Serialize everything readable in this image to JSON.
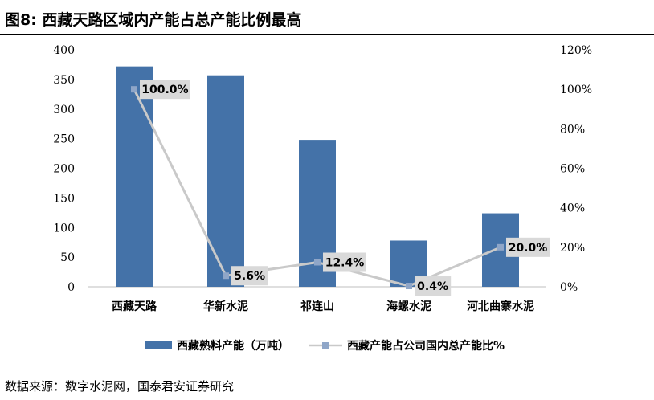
{
  "header": {
    "title": "图8:  西藏天路区域内产能占总产能比例最高"
  },
  "footer": {
    "source": "数据来源：数字水泥网，国泰君安证券研究"
  },
  "chart_data": {
    "type": "bar",
    "title": "",
    "categories": [
      "西藏天路",
      "华新水泥",
      "祁连山",
      "海螺水泥",
      "河北曲寨水泥"
    ],
    "series": [
      {
        "name": "西藏熟料产能（万吨）",
        "type": "bar",
        "axis": "left",
        "color": "#4472A8",
        "values": [
          372,
          357,
          248,
          78,
          124
        ]
      },
      {
        "name": "西藏产能占公司国内总产能比%",
        "type": "line",
        "axis": "right",
        "color": "#C9C9C9",
        "marker_color": "#8FA6C8",
        "values": [
          100.0,
          5.6,
          12.4,
          0.4,
          20.0
        ],
        "labels": [
          "100.0%",
          "5.6%",
          "12.4%",
          "0.4%",
          "20.0%"
        ]
      }
    ],
    "y_left": {
      "min": 0,
      "max": 400,
      "ticks": [
        "0",
        "50",
        "100",
        "150",
        "200",
        "250",
        "300",
        "350",
        "400"
      ]
    },
    "y_right": {
      "min": 0,
      "max": 120,
      "ticks": [
        "0%",
        "20%",
        "40%",
        "60%",
        "80%",
        "100%",
        "120%"
      ]
    },
    "grid": false,
    "legend_position": "bottom"
  }
}
